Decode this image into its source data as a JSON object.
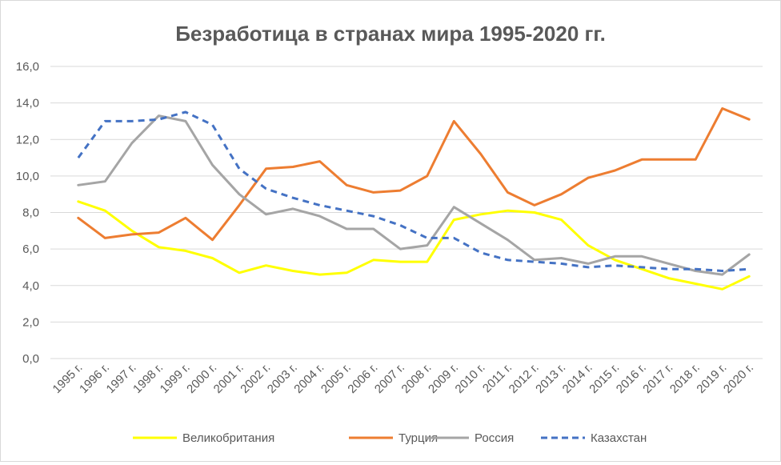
{
  "chart_data": {
    "type": "line",
    "title": "Безработица в странах мира 1995-2020 гг.",
    "xlabel": "",
    "ylabel": "",
    "ylim": [
      0,
      16
    ],
    "ytick_step": 2,
    "yticks": [
      "0,0",
      "2,0",
      "4,0",
      "6,0",
      "8,0",
      "10,0",
      "12,0",
      "14,0",
      "16,0"
    ],
    "grid": true,
    "legend_position": "bottom",
    "categories": [
      "1995 г.",
      "1996 г.",
      "1997 г.",
      "1998 г.",
      "1999 г.",
      "2000 г.",
      "2001 г.",
      "2002 г.",
      "2003 г.",
      "2004 г.",
      "2005 г.",
      "2006 г.",
      "2007 г.",
      "2008 г.",
      "2009 г.",
      "2010 г.",
      "2011 г.",
      "2012 г.",
      "2013 г.",
      "2014 г.",
      "2015 г.",
      "2016 г.",
      "2017 г.",
      "2018 г.",
      "2019 г.",
      "2020 г."
    ],
    "series": [
      {
        "name": "Великобритания",
        "color": "#ffff00",
        "dash": false,
        "values": [
          8.6,
          8.1,
          7.0,
          6.1,
          5.9,
          5.5,
          4.7,
          5.1,
          4.8,
          4.6,
          4.7,
          5.4,
          5.3,
          5.3,
          7.6,
          7.9,
          8.1,
          8.0,
          7.6,
          6.2,
          5.4,
          4.9,
          4.4,
          4.1,
          3.8,
          4.5
        ]
      },
      {
        "name": "Турция",
        "color": "#ed7d31",
        "dash": false,
        "values": [
          7.7,
          6.6,
          6.8,
          6.9,
          7.7,
          6.5,
          8.4,
          10.4,
          10.5,
          10.8,
          9.5,
          9.1,
          9.2,
          10.0,
          13.0,
          11.2,
          9.1,
          8.4,
          9.0,
          9.9,
          10.3,
          10.9,
          10.9,
          10.9,
          13.7,
          13.1
        ]
      },
      {
        "name": "Россия",
        "color": "#a5a5a5",
        "dash": false,
        "values": [
          9.5,
          9.7,
          11.8,
          13.3,
          13.0,
          10.6,
          9.0,
          7.9,
          8.2,
          7.8,
          7.1,
          7.1,
          6.0,
          6.2,
          8.3,
          7.4,
          6.5,
          5.4,
          5.5,
          5.2,
          5.6,
          5.6,
          5.2,
          4.8,
          4.6,
          5.7
        ]
      },
      {
        "name": "Казахстан",
        "color": "#4472c4",
        "dash": true,
        "values": [
          11.0,
          13.0,
          13.0,
          13.1,
          13.5,
          12.8,
          10.4,
          9.3,
          8.8,
          8.4,
          8.1,
          7.8,
          7.3,
          6.6,
          6.6,
          5.8,
          5.4,
          5.3,
          5.2,
          5.0,
          5.1,
          5.0,
          4.9,
          4.9,
          4.8,
          4.9
        ]
      }
    ]
  }
}
